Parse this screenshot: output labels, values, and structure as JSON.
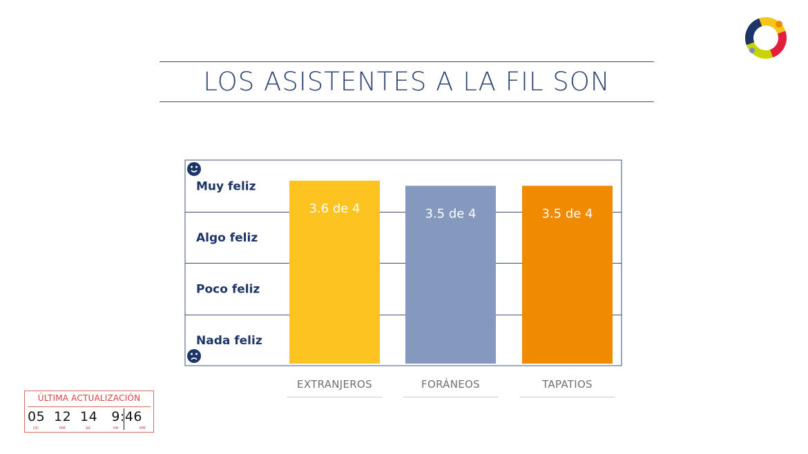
{
  "title": "LOS ASISTENTES A LA FIL SON",
  "colors": {
    "title": "#2f4470",
    "grid": "#3d4f7a",
    "axis_label": "#1c3566",
    "stamp": "#d94040"
  },
  "icons": {
    "logo": "colorful-ring-logo",
    "top": "happy-face-icon",
    "bottom": "sad-face-icon"
  },
  "chart_data": {
    "type": "bar",
    "title": "LOS ASISTENTES A LA FIL SON",
    "categories": [
      "EXTRANJEROS",
      "FORÁNEOS",
      "TAPATIOS"
    ],
    "values": [
      3.6,
      3.5,
      3.5
    ],
    "value_labels": [
      "3.6 de 4",
      "3.5 de 4",
      "3.5 de 4"
    ],
    "bar_colors": [
      "#fdc421",
      "#8598be",
      "#f08a00"
    ],
    "y_levels": [
      "Nada feliz",
      "Poco feliz",
      "Algo feliz",
      "Muy feliz"
    ],
    "ylim": [
      0,
      4
    ],
    "grid": true,
    "legend": "none"
  },
  "update_stamp": {
    "heading": "ÚLTIMA ACTUALIZACIÓN",
    "day": "05",
    "month": "12",
    "year": "14",
    "hour": "9:46",
    "day_cap": "DD",
    "month_cap": "MM",
    "year_cap": "AA",
    "hour_cap": "HH",
    "minute_cap": "MM"
  }
}
